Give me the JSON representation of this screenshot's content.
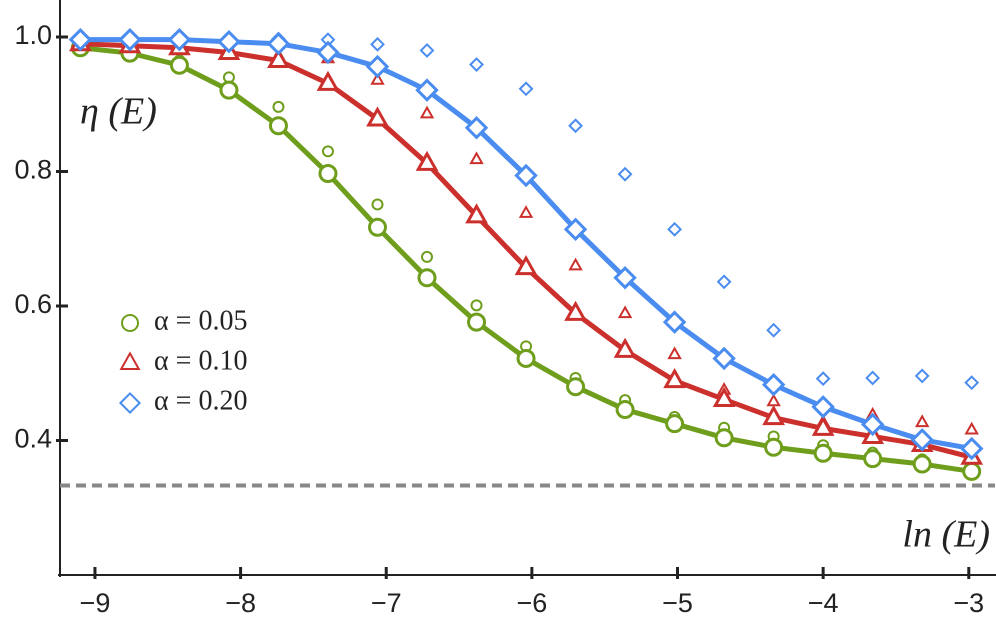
{
  "chart_data": {
    "type": "line",
    "y_label": "η (E)",
    "x_label": "ln (E)",
    "x": [
      -9.1,
      -8.76,
      -8.42,
      -8.08,
      -7.74,
      -7.4,
      -7.06,
      -6.72,
      -6.38,
      -6.04,
      -5.7,
      -5.36,
      -5.02,
      -4.68,
      -4.34,
      -4.0,
      -3.66,
      -3.32,
      -2.98
    ],
    "series": [
      {
        "name": "α = 0.05",
        "color": "#6e9e1c",
        "marker": "circle",
        "values": [
          0.984,
          0.976,
          0.958,
          0.921,
          0.868,
          0.797,
          0.717,
          0.642,
          0.576,
          0.522,
          0.48,
          0.446,
          0.425,
          0.404,
          0.39,
          0.381,
          0.373,
          0.365,
          0.354
        ],
        "secondary_values": [
          0.984,
          0.976,
          0.965,
          0.94,
          0.896,
          0.83,
          0.751,
          0.673,
          0.601,
          0.54,
          0.493,
          0.46,
          0.435,
          0.419,
          0.406,
          0.393,
          0.382,
          0.372,
          0.36
        ]
      },
      {
        "name": "α = 0.10",
        "color": "#cc302c",
        "marker": "triangle",
        "values": [
          0.99,
          0.987,
          0.984,
          0.977,
          0.965,
          0.931,
          0.878,
          0.812,
          0.734,
          0.657,
          0.589,
          0.534,
          0.489,
          0.461,
          0.434,
          0.418,
          0.406,
          0.394,
          0.375
        ],
        "secondary_values": [
          0.99,
          0.987,
          0.985,
          0.98,
          0.972,
          0.968,
          0.936,
          0.886,
          0.818,
          0.738,
          0.66,
          0.589,
          0.528,
          0.475,
          0.458,
          0.427,
          0.438,
          0.427,
          0.416
        ]
      },
      {
        "name": "α = 0.20",
        "color": "#4a8cf0",
        "marker": "diamond",
        "values": [
          0.996,
          0.996,
          0.996,
          0.993,
          0.99,
          0.977,
          0.956,
          0.921,
          0.865,
          0.794,
          0.714,
          0.642,
          0.576,
          0.522,
          0.483,
          0.45,
          0.424,
          0.401,
          0.388
        ],
        "secondary_values": [
          0.997,
          0.997,
          0.997,
          0.997,
          0.997,
          0.996,
          0.989,
          0.98,
          0.959,
          0.923,
          0.868,
          0.796,
          0.714,
          0.636,
          0.564,
          0.492,
          0.493,
          0.496,
          0.486
        ]
      }
    ],
    "hline": {
      "value": 0.333,
      "color": "#888888"
    },
    "xlim": [
      -9.24,
      -2.82
    ],
    "ylim": [
      0.2,
      1.055
    ],
    "xticks": [
      {
        "value": -9,
        "label": "−9"
      },
      {
        "value": -8,
        "label": "−8"
      },
      {
        "value": -7,
        "label": "−7"
      },
      {
        "value": -6,
        "label": "−6"
      },
      {
        "value": -5,
        "label": "−5"
      },
      {
        "value": -4,
        "label": "−4"
      },
      {
        "value": -3,
        "label": "−3"
      }
    ],
    "yticks": [
      0.4,
      0.6,
      0.8,
      {
        "value": 1,
        "label": "1.0"
      }
    ],
    "legend": "left"
  }
}
